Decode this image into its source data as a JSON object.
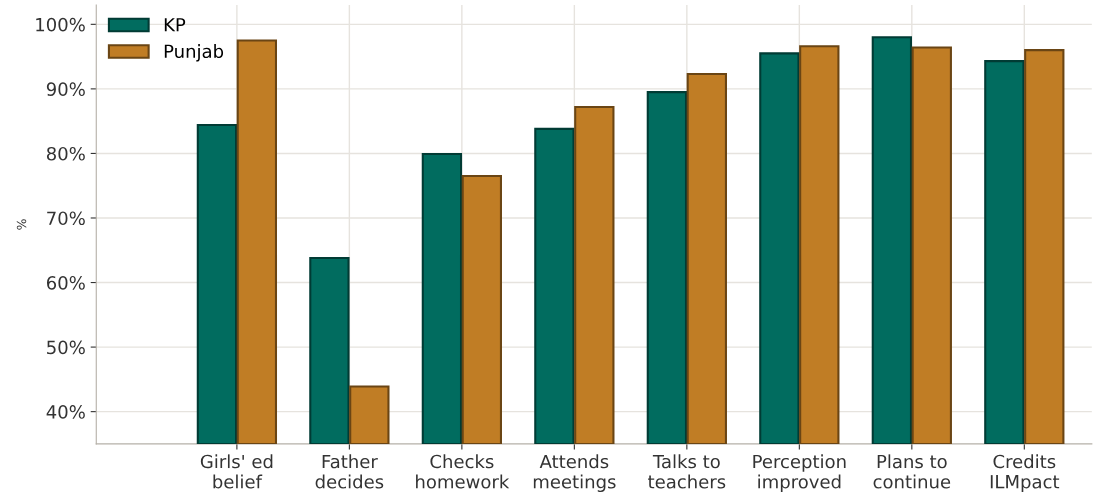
{
  "chart_data": {
    "type": "bar",
    "ylabel": "%",
    "categories": [
      "Girls' ed\nbelief",
      "Father\ndecides",
      "Checks\nhomework",
      "Attends\nmeetings",
      "Talks to\nteachers",
      "Perception\nimproved",
      "Plans to\ncontinue",
      "Credits\nILMpact"
    ],
    "series": [
      {
        "name": "KP",
        "color": "#016c5f",
        "values": [
          84.4,
          63.8,
          79.9,
          83.8,
          89.5,
          95.5,
          98.0,
          94.3
        ]
      },
      {
        "name": "Punjab",
        "color": "#c07d25",
        "values": [
          97.5,
          43.9,
          76.5,
          87.2,
          92.3,
          96.6,
          96.4,
          96.0
        ]
      }
    ],
    "ylim": [
      35,
      103
    ],
    "yticks": [
      {
        "value": 40,
        "label": "40%"
      },
      {
        "value": 50,
        "label": "50%"
      },
      {
        "value": 60,
        "label": "60%"
      },
      {
        "value": 70,
        "label": "70%"
      },
      {
        "value": 80,
        "label": "80%"
      },
      {
        "value": 90,
        "label": "90%"
      },
      {
        "value": 100,
        "label": "100%"
      }
    ],
    "grid": true,
    "legend": "top left"
  }
}
